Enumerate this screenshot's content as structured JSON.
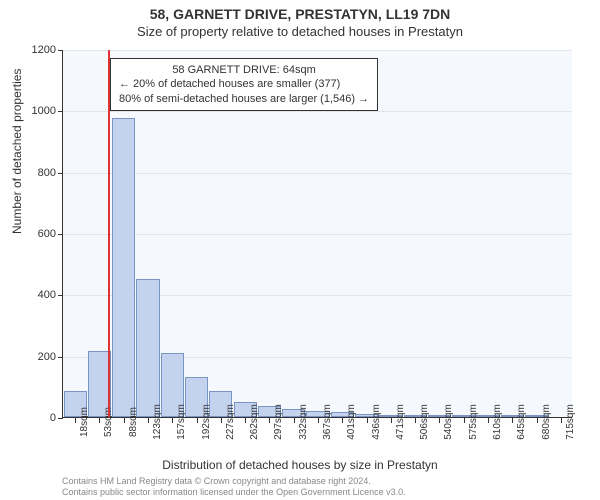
{
  "title_line1": "58, GARNETT DRIVE, PRESTATYN, LL19 7DN",
  "title_line2": "Size of property relative to detached houses in Prestatyn",
  "chart": {
    "type": "histogram",
    "background_color": "#f5f8fc",
    "grid_color": "#e2e6ec",
    "bar_fill": "#c4d3ed",
    "bar_stroke": "#7a94c4",
    "marker_color": "#d33",
    "ylim": [
      0,
      1200
    ],
    "ytick_step": 200,
    "ylabel": "Number of detached properties",
    "xlabel": "Distribution of detached houses by size in Prestatyn",
    "x_categories": [
      "18sqm",
      "53sqm",
      "88sqm",
      "123sqm",
      "157sqm",
      "192sqm",
      "227sqm",
      "262sqm",
      "297sqm",
      "332sqm",
      "367sqm",
      "401sqm",
      "436sqm",
      "471sqm",
      "506sqm",
      "540sqm",
      "575sqm",
      "610sqm",
      "645sqm",
      "680sqm",
      "715sqm"
    ],
    "values": [
      85,
      215,
      975,
      450,
      210,
      130,
      85,
      50,
      35,
      25,
      20,
      15,
      10,
      8,
      5,
      3,
      2,
      1,
      1,
      1,
      0
    ],
    "marker_x_index": 1.35,
    "bar_width_ratio": 0.95
  },
  "annotation": {
    "line1": "58 GARNETT DRIVE: 64sqm",
    "line2": "← 20% of detached houses are smaller (377)",
    "line3": "80% of semi-detached houses are larger (1,546) →"
  },
  "footer_line1": "Contains HM Land Registry data © Crown copyright and database right 2024.",
  "footer_line2": "Contains public sector information licensed under the Open Government Licence v3.0."
}
